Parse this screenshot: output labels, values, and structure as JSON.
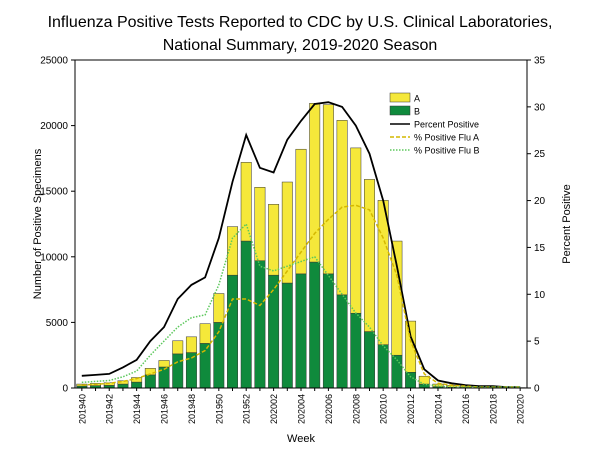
{
  "chart_data": {
    "type": "bar",
    "stacked": true,
    "title": [
      "Influenza Positive Tests Reported to CDC by U.S. Clinical Laboratories,",
      "National Summary, 2019-2020 Season"
    ],
    "x_label": "Week",
    "y_label": "Number of Positive Specimens",
    "y2_label": "Percent Positive",
    "categories": [
      "201940",
      null,
      "201942",
      null,
      "201944",
      null,
      "201946",
      null,
      "201948",
      null,
      "201950",
      null,
      "201952",
      null,
      "202002",
      null,
      "202004",
      null,
      "202006",
      null,
      "202008",
      null,
      "202010",
      null,
      "202012",
      null,
      "202014",
      null,
      "202016",
      null,
      "202018",
      null,
      "202020"
    ],
    "ylim": [
      0,
      25000
    ],
    "yticks": [
      0,
      5000,
      10000,
      15000,
      20000,
      25000
    ],
    "y2lim": [
      0,
      35
    ],
    "y2ticks": [
      0,
      5,
      10,
      15,
      20,
      25,
      30,
      35
    ],
    "legend": "top-right",
    "series": [
      {
        "name": "B",
        "type": "bar",
        "color": "#0f8a3c",
        "values": [
          150,
          180,
          200,
          300,
          450,
          1000,
          1600,
          2600,
          2700,
          3400,
          5000,
          8600,
          11200,
          9700,
          8600,
          8000,
          8700,
          9600,
          8700,
          7100,
          5700,
          4300,
          3300,
          2500,
          1200,
          300,
          100,
          60,
          40,
          30,
          20,
          15,
          10
        ]
      },
      {
        "name": "A",
        "type": "bar",
        "color": "#f5e83a",
        "values": [
          150,
          170,
          200,
          250,
          350,
          500,
          500,
          1000,
          1200,
          1500,
          2200,
          3700,
          6000,
          5600,
          5400,
          7700,
          9500,
          12100,
          12900,
          13300,
          12600,
          11600,
          11000,
          8700,
          3900,
          600,
          200,
          140,
          110,
          90,
          60,
          35,
          20
        ]
      },
      {
        "name": "Percent Positive",
        "type": "line",
        "axis": "y2",
        "color": "#000000",
        "dash": "solid",
        "values": [
          1.3,
          1.4,
          1.5,
          2.2,
          3,
          5,
          6.5,
          9.5,
          11,
          11.8,
          16,
          22,
          27,
          23.5,
          23,
          26.5,
          28.5,
          30.3,
          30.5,
          30,
          28,
          25,
          20,
          13,
          5.5,
          2,
          0.8,
          0.5,
          0.3,
          0.2,
          0.2,
          0.1,
          0.1
        ]
      },
      {
        "name": "% Positive Flu A",
        "type": "line",
        "axis": "y2",
        "color": "#d4b800",
        "dash": "dashed",
        "values": [
          0.3,
          0.4,
          0.5,
          0.7,
          1,
          1.5,
          2,
          2.8,
          3.2,
          4,
          6,
          9.5,
          9.5,
          8.8,
          10.5,
          12.5,
          14.5,
          16.5,
          18,
          19.3,
          19.5,
          19,
          16,
          12,
          5,
          1.5,
          0.5,
          0.3,
          0.2,
          0.1,
          0.1,
          0.1,
          0.1
        ]
      },
      {
        "name": "% Positive Flu B",
        "type": "line",
        "axis": "y2",
        "color": "#5cc85c",
        "dash": "dotted",
        "values": [
          0.6,
          0.7,
          0.8,
          1.2,
          1.8,
          3.5,
          5,
          6.5,
          7.5,
          7.8,
          11,
          16,
          17.5,
          13,
          12.5,
          13,
          13.5,
          14,
          12,
          10,
          8,
          6.5,
          4.5,
          3,
          1.2,
          0.4,
          0.2,
          0.1,
          0.1,
          0.1,
          0.1,
          0.1,
          0.1
        ]
      }
    ]
  }
}
